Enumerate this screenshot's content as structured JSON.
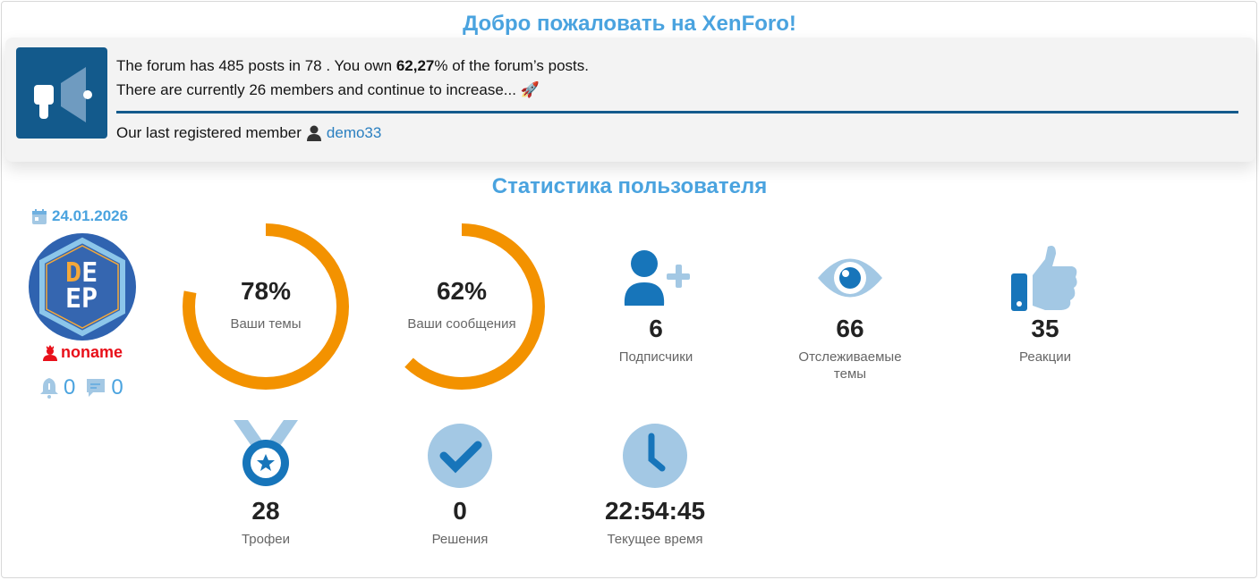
{
  "welcome_title": "Добро пожаловать на XenForo!",
  "notice": {
    "line1_pre": "The forum has 485 posts in 78 . You own ",
    "line1_bold": "62,27",
    "line1_post": "% of the forum’s posts.",
    "line2": "There are currently 26 members and continue to increase...",
    "last_member_label": "Our last registered member",
    "last_member": "demo33"
  },
  "stats_title": "Статистика пользователя",
  "user": {
    "date": "24.01.2026",
    "name": "noname",
    "alerts": "0",
    "conversations": "0",
    "avatar_text": "DEEP"
  },
  "rings": [
    {
      "percent": 78,
      "value": "78%",
      "label": "Ваши темы"
    },
    {
      "percent": 62,
      "value": "62%",
      "label": "Ваши сообщения"
    }
  ],
  "stats": [
    {
      "icon": "user-plus-icon",
      "value": "6",
      "label": "Подписчики"
    },
    {
      "icon": "eye-icon",
      "value": "66",
      "label": "Отслеживаемые темы"
    },
    {
      "icon": "thumbs-up-icon",
      "value": "35",
      "label": "Реакции"
    },
    {
      "icon": "medal-icon",
      "value": "28",
      "label": "Трофеи"
    },
    {
      "icon": "check-circle-icon",
      "value": "0",
      "label": "Решения"
    },
    {
      "icon": "clock-icon",
      "value": "22:54:45",
      "label": "Текущее время"
    }
  ],
  "colors": {
    "accent": "#4aa3df",
    "ring": "#f39200",
    "dark_blue": "#135a8c",
    "icon_blue": "#1775ba",
    "icon_light": "#a3c8e4",
    "username": "#e8101a"
  }
}
